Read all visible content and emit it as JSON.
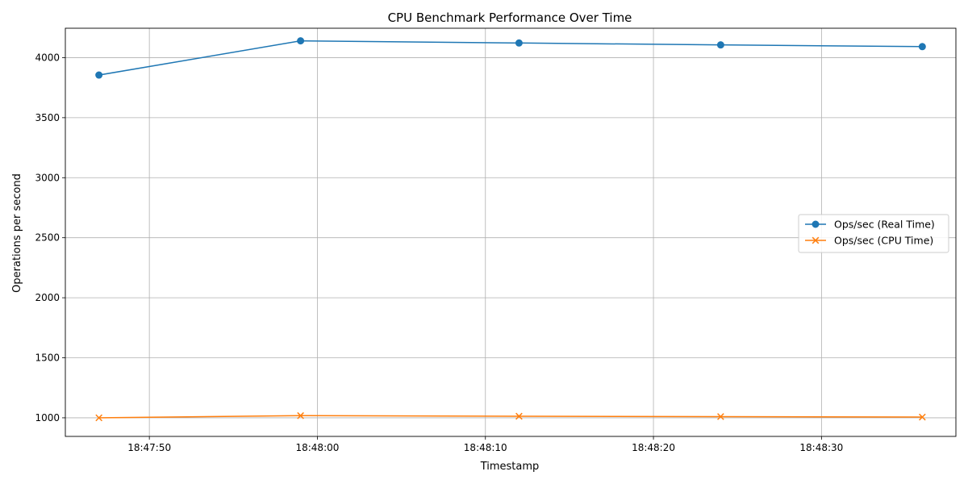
{
  "chart_data": {
    "type": "line",
    "title": "CPU Benchmark Performance Over Time",
    "xlabel": "Timestamp",
    "ylabel": "Operations per second",
    "x": [
      "18:47:47",
      "18:47:59",
      "18:48:12",
      "18:48:24",
      "18:48:36"
    ],
    "xlim": [
      "18:47:45",
      "18:48:38"
    ],
    "xticks": [
      "18:47:50",
      "18:48:00",
      "18:48:10",
      "18:48:20",
      "18:48:30"
    ],
    "ylim": [
      845,
      4245
    ],
    "yticks": [
      1000,
      1500,
      2000,
      2500,
      3000,
      3500,
      4000
    ],
    "grid": true,
    "legend_position": "center-right",
    "series": [
      {
        "name": "Ops/sec (Real Time)",
        "values": [
          3855,
          4140,
          4122,
          4106,
          4092
        ],
        "color": "#1f77b4",
        "marker": "circle"
      },
      {
        "name": "Ops/sec (CPU Time)",
        "values": [
          1000,
          1018,
          1013,
          1010,
          1006
        ],
        "color": "#ff7f0e",
        "marker": "x"
      }
    ]
  }
}
